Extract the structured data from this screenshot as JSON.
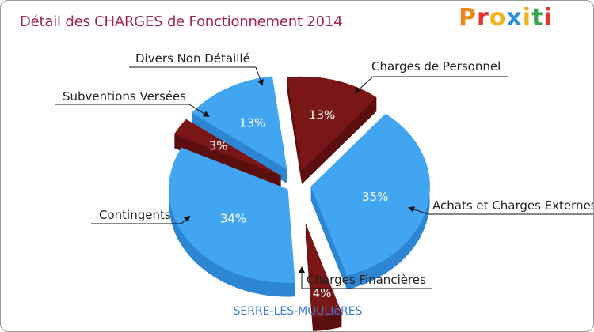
{
  "title": "Détail des CHARGES de Fonctionnement 2014",
  "logo": {
    "text": "Proxiti",
    "colors": [
      "#e98a1e",
      "#e8342f",
      "#f2b51e",
      "#2f8fd4",
      "#f2b51e",
      "#39a64a",
      "#e8342f"
    ]
  },
  "caption": "SERRE-LES-MOULIèRES",
  "chart_data": {
    "type": "pie",
    "title": "Détail des CHARGES de Fonctionnement 2014",
    "slices": [
      {
        "label": "Charges de Personnel",
        "value": 13,
        "display": "13%",
        "color": "#7a1616",
        "side": "#5a0e0e"
      },
      {
        "label": "Achats et Charges Externes",
        "value": 35,
        "display": "35%",
        "color": "#42a5f2",
        "side": "#2d86d1"
      },
      {
        "label": "Charges Financières",
        "value": 4,
        "display": "4%",
        "color": "#7a1616",
        "side": "#5a0e0e"
      },
      {
        "label": "Contingents",
        "value": 34,
        "display": "34%",
        "color": "#42a5f2",
        "side": "#2d86d1"
      },
      {
        "label": "Subventions Versées",
        "value": 3,
        "display": "3%",
        "color": "#7a1616",
        "side": "#5a0e0e"
      },
      {
        "label": "Divers Non Détaillé",
        "value": 13,
        "display": "13%",
        "color": "#42a5f2",
        "side": "#2d86d1"
      }
    ]
  }
}
